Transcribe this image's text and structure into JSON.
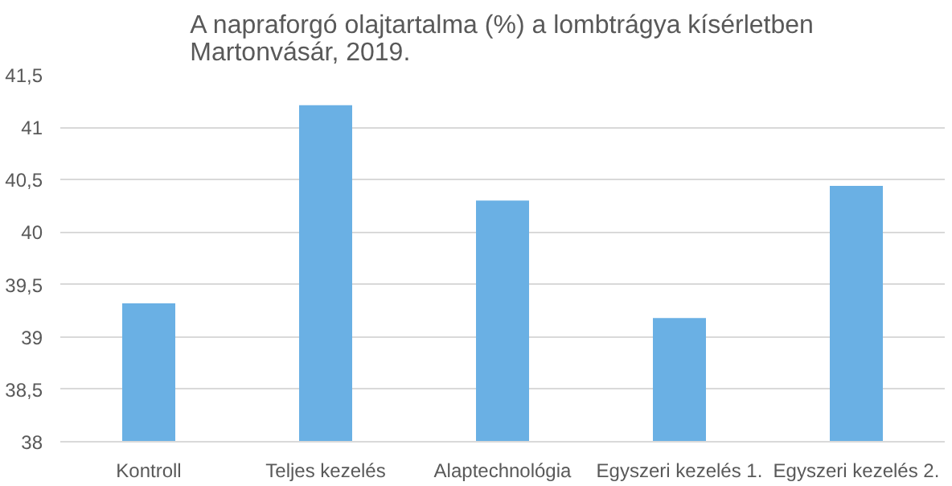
{
  "chart_data": {
    "type": "bar",
    "title": "A napraforgó olajtartalma (%) a lombtrágya kísérletben\nMartonvásár,  2019.",
    "categories": [
      "Kontroll",
      "Teljes kezelés",
      "Alaptechnológia",
      "Egyszeri kezelés 1.",
      "Egyszeri kezelés 2."
    ],
    "values": [
      39.32,
      41.21,
      40.3,
      39.18,
      40.44
    ],
    "color": "#6ab0e4",
    "ylim": [
      38,
      41.5
    ],
    "yticks": [
      38,
      {
        "value": 38.5,
        "label": "38,5"
      },
      39,
      {
        "value": 39.5,
        "label": "39,5"
      },
      40,
      {
        "value": 40.5,
        "label": "40,5"
      },
      41,
      {
        "value": 41.5,
        "label": "41,5"
      }
    ],
    "grid": "y"
  }
}
